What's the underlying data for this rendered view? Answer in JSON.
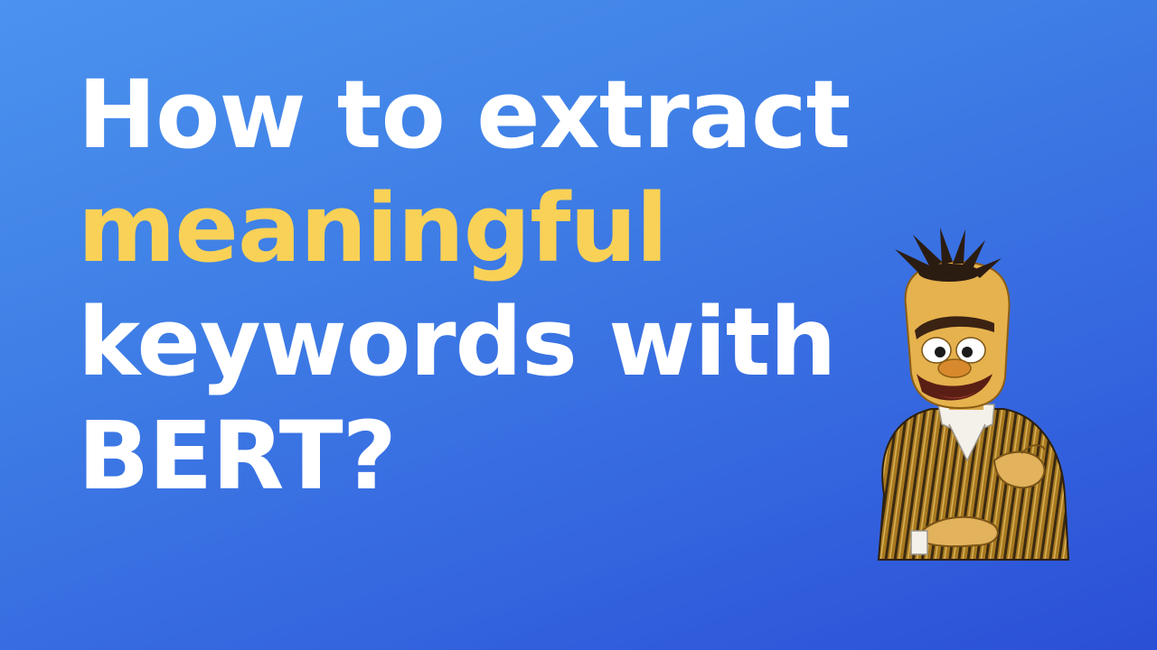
{
  "headline": {
    "line1": "How to extract",
    "line2": "meaningful",
    "line3": "keywords with",
    "line4": "BERT?"
  },
  "colors": {
    "background_start": "#4b93ee",
    "background_end": "#2a4fd6",
    "text": "#ffffff",
    "highlight": "#f9d157"
  },
  "illustration": {
    "name": "muppet-character"
  }
}
